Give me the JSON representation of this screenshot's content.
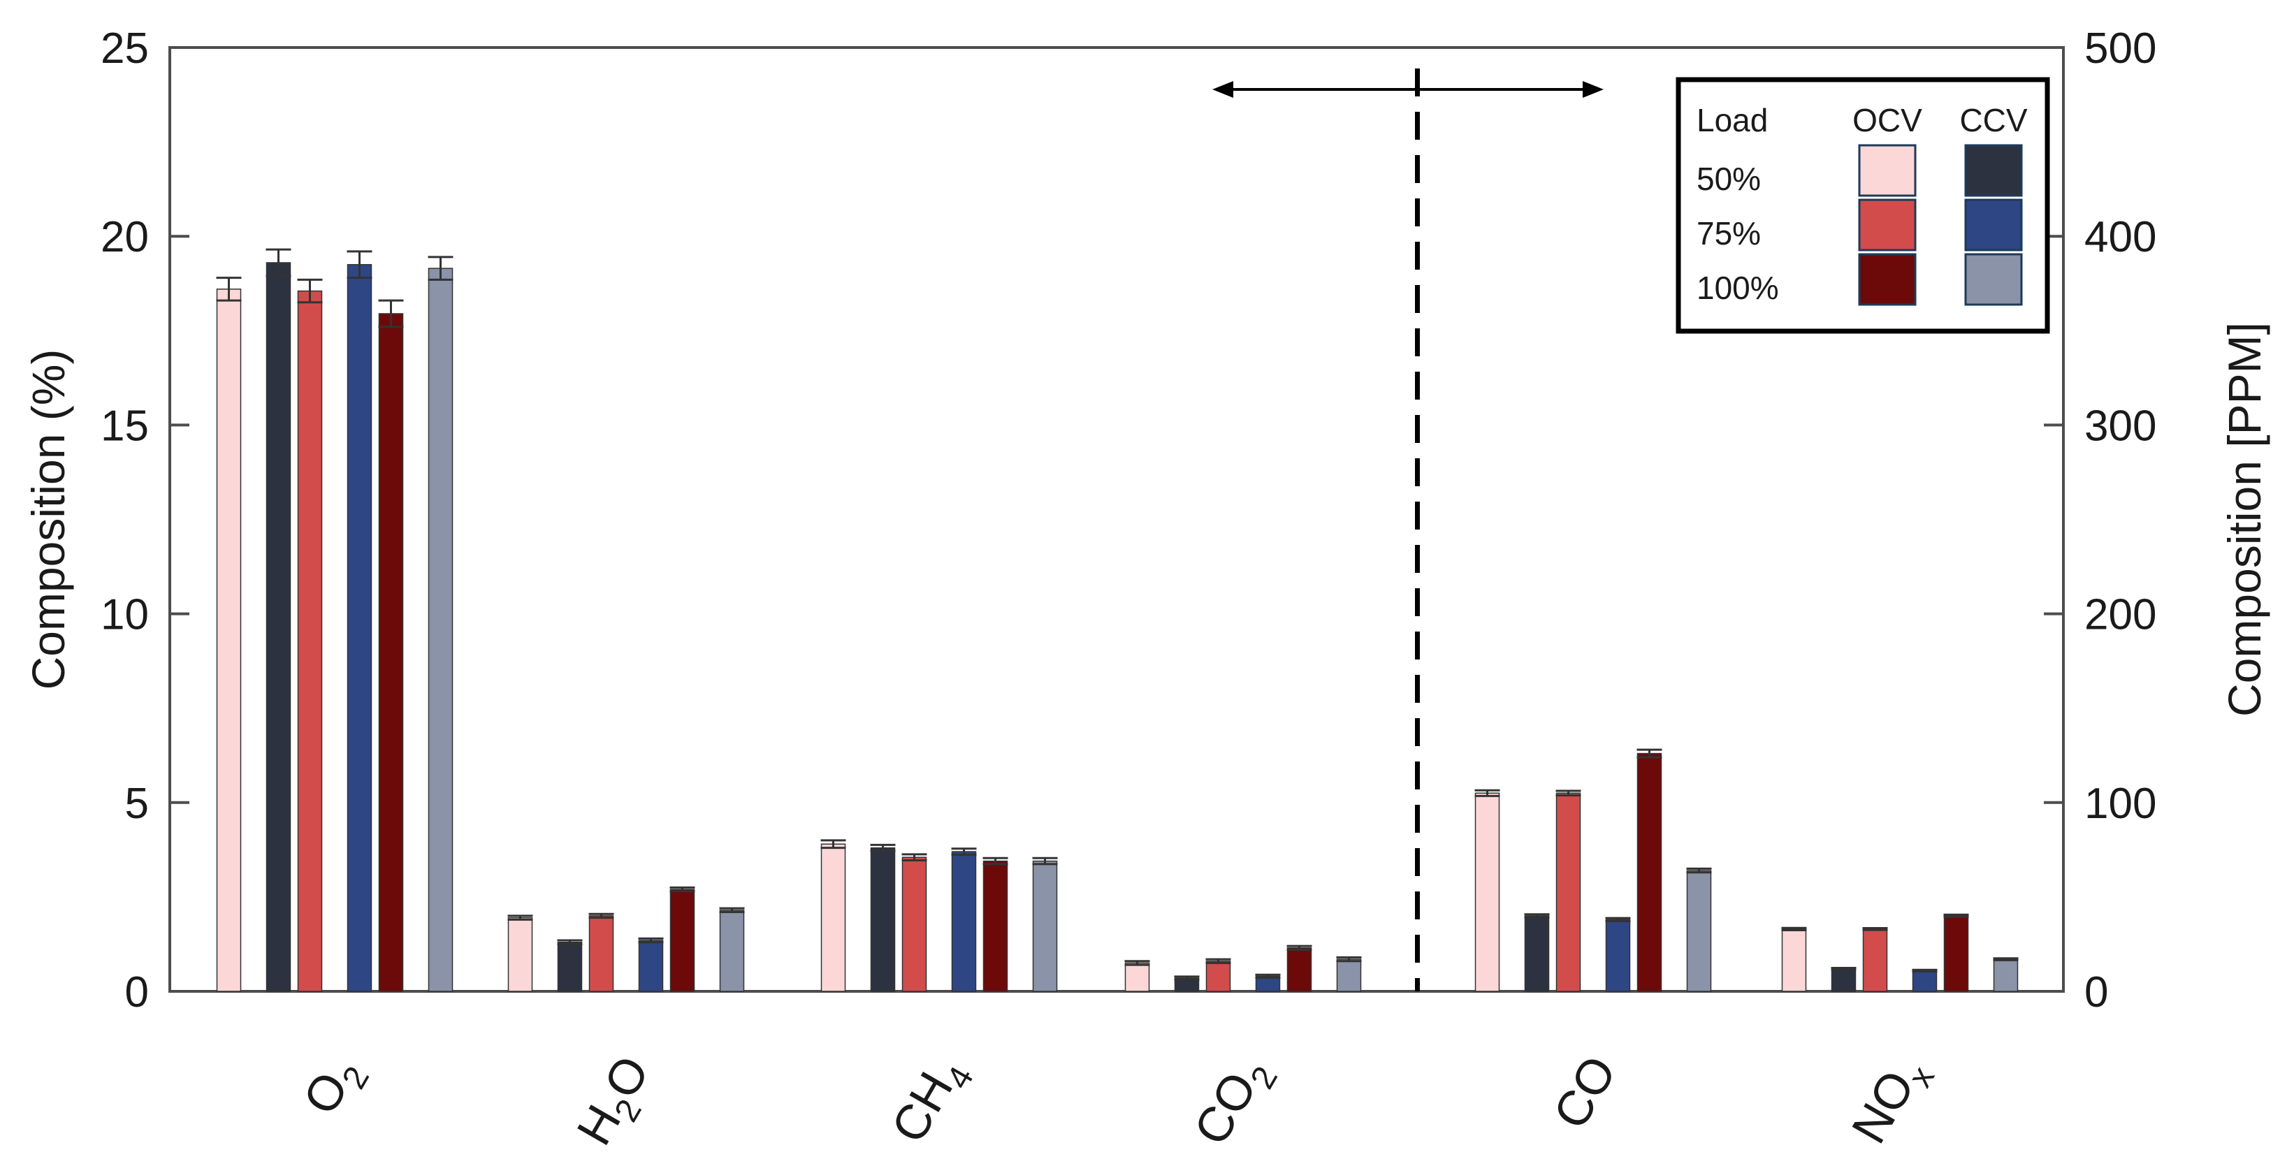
{
  "chart_data": {
    "type": "bar",
    "categories": [
      {
        "main": "O",
        "sub": "2"
      },
      {
        "main": "H",
        "sub": "2",
        "tail": "O"
      },
      {
        "main": "CH",
        "sub": "4"
      },
      {
        "main": "CO",
        "sub": "2"
      },
      {
        "main": "CO",
        "sub": ""
      },
      {
        "main": "NO",
        "sub": "x"
      }
    ],
    "left_axis": {
      "label": "Composition (%)",
      "ylim": [
        0,
        25
      ],
      "ticks": [
        "0",
        "5",
        "10",
        "15",
        "20",
        "25"
      ],
      "applies_to_categories": [
        0,
        1,
        2,
        3
      ]
    },
    "right_axis": {
      "label": "Composition [PPM]",
      "ylim": [
        0,
        500
      ],
      "ticks": [
        "0",
        "100",
        "200",
        "300",
        "400",
        "500"
      ],
      "applies_to_categories": [
        4,
        5
      ]
    },
    "series": [
      {
        "load": "50%",
        "mode": "OCV",
        "color": "#fcd7d7",
        "values": [
          18.6,
          1.95,
          3.9,
          0.75,
          105,
          33
        ],
        "errors": [
          0.3,
          0.05,
          0.1,
          0.05,
          1.5,
          0.6
        ]
      },
      {
        "load": "50%",
        "mode": "CCV",
        "color": "#2d3240",
        "values": [
          19.3,
          1.3,
          3.8,
          0.35,
          40,
          12
        ],
        "errors": [
          0.35,
          0.05,
          0.08,
          0.04,
          0.8,
          0.4
        ]
      },
      {
        "load": "75%",
        "mode": "OCV",
        "color": "#d24c4c",
        "values": [
          18.55,
          2.0,
          3.55,
          0.8,
          105,
          33
        ],
        "errors": [
          0.3,
          0.05,
          0.08,
          0.05,
          1.2,
          0.5
        ]
      },
      {
        "load": "75%",
        "mode": "CCV",
        "color": "#2e4684",
        "values": [
          19.25,
          1.35,
          3.7,
          0.4,
          38,
          11
        ],
        "errors": [
          0.35,
          0.05,
          0.08,
          0.04,
          0.8,
          0.4
        ]
      },
      {
        "load": "100%",
        "mode": "OCV",
        "color": "#6c0a0a",
        "values": [
          17.95,
          2.7,
          3.45,
          1.15,
          126,
          40
        ],
        "errors": [
          0.35,
          0.05,
          0.08,
          0.05,
          2,
          0.6
        ]
      },
      {
        "load": "100%",
        "mode": "CCV",
        "color": "#8a93a8",
        "values": [
          19.15,
          2.15,
          3.45,
          0.85,
          64,
          17
        ],
        "errors": [
          0.3,
          0.05,
          0.08,
          0.05,
          1,
          0.5
        ]
      }
    ],
    "divider_between_categories": [
      3,
      4
    ],
    "double_arrow": true,
    "legend": {
      "placement": "top-right",
      "header": {
        "load": "Load",
        "col1": "OCV",
        "col2": "CCV"
      },
      "rows": [
        "50%",
        "75%",
        "100%"
      ]
    },
    "grid": false
  }
}
